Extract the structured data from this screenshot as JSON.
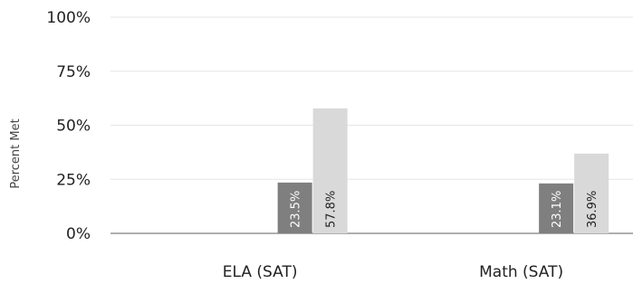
{
  "chart_data": {
    "type": "bar",
    "ylabel": "Percent Met",
    "xlabel": "",
    "ylim": [
      0,
      100
    ],
    "y_ticks": [
      "0%",
      "25%",
      "50%",
      "75%",
      "100%"
    ],
    "y_tick_values": [
      0,
      25,
      50,
      75,
      100
    ],
    "grid": true,
    "categories": [
      "ELA (SAT)",
      "Math (SAT)"
    ],
    "series": [
      {
        "color": "#7f7f7f",
        "label_color": "#ffffff",
        "values": [
          23.5,
          23.1
        ],
        "labels": [
          "23.5%",
          "23.1%"
        ]
      },
      {
        "color": "#d9d9d9",
        "label_color": "#222222",
        "values": [
          57.8,
          36.9
        ],
        "labels": [
          "57.8%",
          "36.9%"
        ]
      }
    ]
  }
}
